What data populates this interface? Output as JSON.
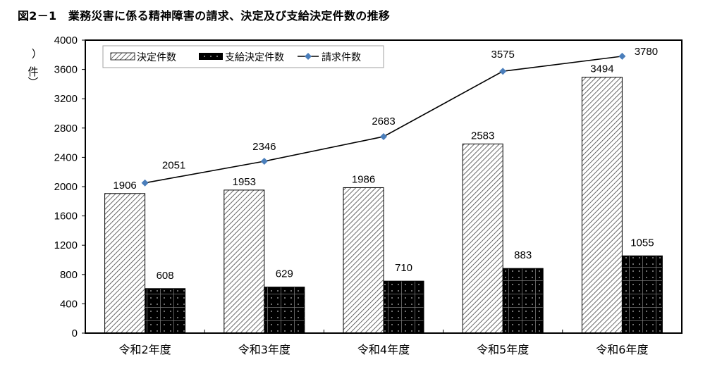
{
  "title": "図2－1　業務災害に係る精神障害の請求、決定及び支給決定件数の推移",
  "chart_data": {
    "type": "bar",
    "title": "図2－1　業務災害に係る精神障害の請求、決定及び支給決定件数の推移",
    "xlabel": "",
    "ylabel": "（件）",
    "ylim": [
      0,
      4000
    ],
    "yticks": [
      0,
      400,
      800,
      1200,
      1600,
      2000,
      2400,
      2800,
      3200,
      3600,
      4000
    ],
    "grid": false,
    "legend_position": "top-left inside",
    "categories": [
      "令和2年度",
      "令和3年度",
      "令和4年度",
      "令和5年度",
      "令和6年度"
    ],
    "series": [
      {
        "name": "決定件数",
        "type": "bar",
        "pattern": "diagonal-hatch",
        "values": [
          1906,
          1953,
          1986,
          2583,
          3494
        ]
      },
      {
        "name": "支給決定件数",
        "type": "bar",
        "pattern": "black-dotted-grid",
        "values": [
          608,
          629,
          710,
          883,
          1055
        ]
      },
      {
        "name": "請求件数",
        "type": "line",
        "marker": "diamond",
        "color": "#4a7ebb",
        "values": [
          2051,
          2346,
          2683,
          3575,
          3780
        ]
      }
    ]
  },
  "colors": {
    "line": "#000000",
    "marker": "#4a7ebb",
    "bar_dark": "#000000",
    "hatch": "#444444",
    "legend_border": "#a0a0a0"
  }
}
